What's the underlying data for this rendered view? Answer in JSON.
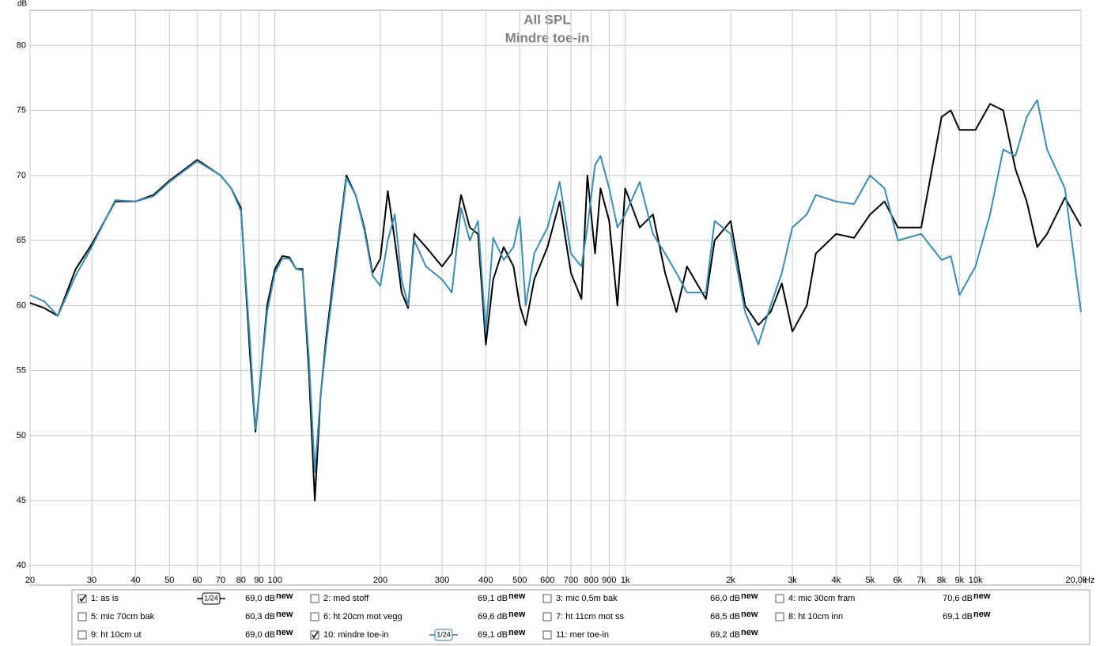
{
  "chart_data": {
    "type": "line",
    "title": "All SPL",
    "subtitle": "Mindre toe-in",
    "y_label": "dB",
    "x_unit": "Hz",
    "x_scale": "log",
    "grid": true,
    "x": [
      20,
      22,
      24,
      27,
      30,
      35,
      40,
      45,
      50,
      60,
      70,
      75,
      80,
      85,
      88,
      90,
      95,
      100,
      105,
      110,
      115,
      120,
      125,
      130,
      135,
      140,
      150,
      160,
      170,
      180,
      190,
      200,
      210,
      220,
      230,
      240,
      250,
      270,
      300,
      320,
      340,
      360,
      380,
      400,
      420,
      450,
      480,
      500,
      520,
      550,
      600,
      650,
      700,
      750,
      780,
      820,
      850,
      900,
      950,
      1000,
      1100,
      1200,
      1300,
      1400,
      1500,
      1700,
      1800,
      2000,
      2200,
      2400,
      2600,
      2800,
      3000,
      3300,
      3500,
      4000,
      4500,
      5000,
      5500,
      6000,
      7000,
      8000,
      8500,
      9000,
      10000,
      11000,
      12000,
      13000,
      14000,
      15000,
      16000,
      18000,
      20000
    ],
    "series": [
      {
        "name": "1: as is",
        "color": "#000000",
        "values": [
          60.2,
          59.8,
          59.2,
          62.8,
          64.7,
          68.0,
          68.0,
          68.5,
          69.6,
          71.2,
          70.0,
          69,
          67.5,
          56,
          50.3,
          53,
          60,
          62.8,
          63.8,
          63.7,
          62.8,
          62.8,
          55,
          45,
          53,
          57.5,
          64,
          70,
          68.5,
          66,
          62.5,
          63.6,
          68.8,
          65,
          61,
          59.8,
          65.5,
          64.5,
          63,
          64,
          68.5,
          66,
          65.5,
          57,
          62,
          64.5,
          63,
          60,
          58.5,
          62,
          64.5,
          68,
          62.5,
          60.5,
          70,
          64,
          69,
          66.5,
          60,
          69,
          66,
          67,
          62.5,
          59.5,
          63,
          60.5,
          65,
          66.5,
          60,
          58.5,
          59.5,
          61.7,
          58,
          60,
          64,
          65.5,
          65.2,
          67,
          68,
          66,
          66,
          74.5,
          75,
          73.5,
          73.5,
          75.5,
          75,
          70.5,
          68,
          64.5,
          65.5,
          68.3,
          66.1
        ]
      },
      {
        "name": "10: mindre toe-in",
        "color": "#3a8db3",
        "values": [
          60.8,
          60.3,
          59.2,
          62.3,
          64.5,
          68.1,
          68,
          68.4,
          69.5,
          71.1,
          70,
          69,
          67.3,
          57,
          50.5,
          53,
          59.5,
          62.5,
          63.6,
          63.6,
          62.8,
          62.7,
          56,
          47.2,
          53,
          57,
          63.5,
          69.8,
          68.5,
          65.8,
          62.3,
          61.5,
          65,
          67,
          62,
          60,
          65,
          63,
          62,
          61,
          67.5,
          65,
          66.5,
          58,
          65.2,
          63.5,
          64.5,
          66.8,
          60,
          64,
          66,
          69.5,
          64,
          63,
          66,
          70.8,
          71.5,
          69,
          66,
          67,
          69.5,
          65.5,
          64,
          62.5,
          61,
          61,
          66.5,
          65.5,
          59.5,
          57,
          60,
          62.5,
          66,
          67,
          68.5,
          68,
          67.8,
          70,
          69,
          65,
          65.5,
          63.5,
          63.8,
          60.8,
          63,
          67,
          72,
          71.5,
          74.5,
          75.8,
          72,
          69,
          59.5
        ]
      }
    ],
    "xlim": [
      20,
      20000
    ],
    "xticks": [
      20,
      30,
      40,
      50,
      60,
      70,
      80,
      90,
      100,
      200,
      300,
      400,
      500,
      600,
      700,
      800,
      900,
      {
        "value": 1000,
        "label": "1k"
      },
      {
        "value": 2000,
        "label": "2k"
      },
      {
        "value": 3000,
        "label": "3k"
      },
      {
        "value": 4000,
        "label": "4k"
      },
      {
        "value": 5000,
        "label": "5k"
      },
      {
        "value": 6000,
        "label": "6k"
      },
      {
        "value": 7000,
        "label": "7k"
      },
      {
        "value": 8000,
        "label": "8k"
      },
      {
        "value": 9000,
        "label": "9k"
      },
      {
        "value": 10000,
        "label": "10k"
      },
      {
        "value": 20000,
        "label": "20,0k"
      }
    ],
    "ylim": [
      38.5,
      82.7
    ],
    "yticks": [
      40,
      45,
      50,
      55,
      60,
      65,
      70,
      75,
      80
    ]
  },
  "legend": {
    "entries": [
      {
        "label": "1: as is",
        "level": "69,0 dB",
        "badge": "new",
        "checked": true,
        "smoothing": "1/24",
        "color": "#000000"
      },
      {
        "label": "2: med stoff",
        "level": "69,1 dB",
        "badge": "new",
        "checked": false,
        "color": "#2e7d1e"
      },
      {
        "label": "3: mic 0,5m bak",
        "level": "66,0 dB",
        "badge": "new",
        "checked": false,
        "color": "#1a1a1a"
      },
      {
        "label": "4: mic 30cm fram",
        "level": "70,6 dB",
        "badge": "new",
        "checked": false,
        "color": "#8a1a8a"
      },
      {
        "label": "5: mic 70cm bak",
        "level": "60,3 dB",
        "badge": "new",
        "checked": false,
        "color": "#1f6f78"
      },
      {
        "label": "6: ht 20cm mot vegg",
        "level": "69,6 dB",
        "badge": "new",
        "checked": false,
        "color": "#9a8a10"
      },
      {
        "label": "7: ht 11cm mot ss",
        "level": "68,5 dB",
        "badge": "new",
        "checked": false,
        "color": "#1a8a5a"
      },
      {
        "label": "8: ht 10cm inn",
        "level": "69,1 dB",
        "badge": "new",
        "checked": false,
        "color": "#7a2a8a"
      },
      {
        "label": "9: ht 10cm ut",
        "level": "69,0 dB",
        "badge": "new",
        "checked": false,
        "color": "#8a1a7a"
      },
      {
        "label": "10: mindre toe-in",
        "level": "69,1 dB",
        "badge": "new",
        "checked": true,
        "smoothing": "1/24",
        "color": "#2a7fa0"
      },
      {
        "label": "11: mer toe-in",
        "level": "69,2 dB",
        "badge": "new",
        "checked": false,
        "color": "#8a1010"
      }
    ]
  }
}
